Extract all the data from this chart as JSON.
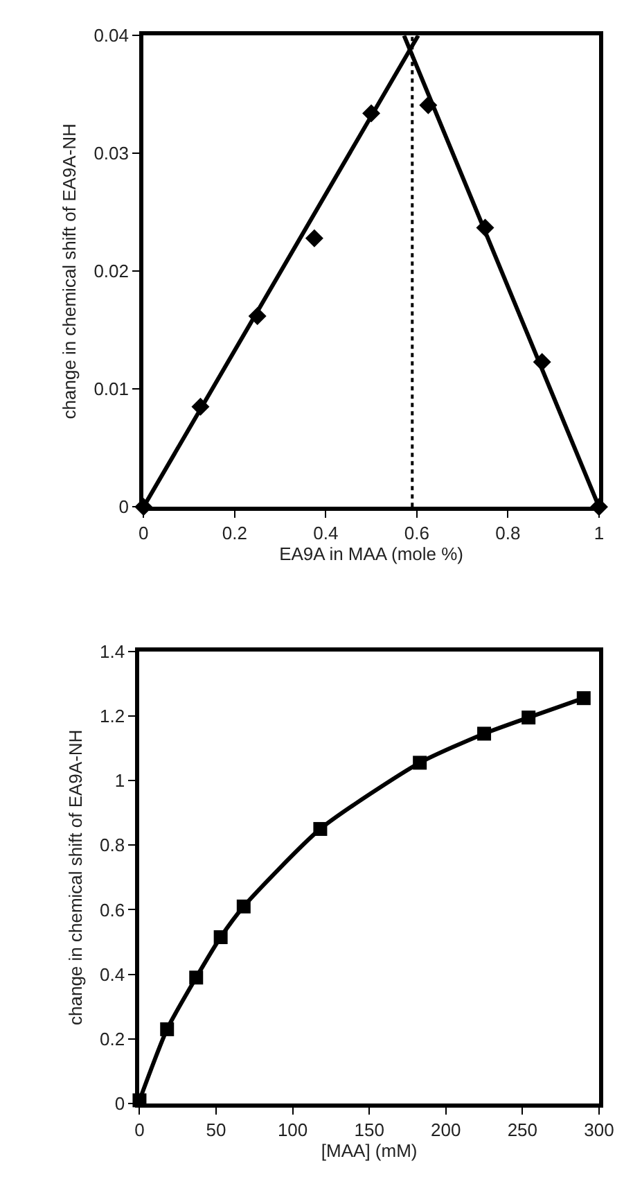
{
  "chart_data": [
    {
      "type": "scatter",
      "xlabel": "EA9A in MAA (mole %)",
      "ylabel": "change in chemical shift of EA9A-NH",
      "marker": "diamond",
      "grid": false,
      "legend": false,
      "x": [
        0,
        0.125,
        0.25,
        0.375,
        0.5,
        0.625,
        0.75,
        0.875,
        1
      ],
      "series": [
        {
          "color": "#000000",
          "values": [
            0,
            0.0085,
            0.0162,
            0.0228,
            0.0334,
            0.0341,
            0.0237,
            0.0123,
            0
          ]
        },
        {
          "type": "line",
          "marker": "none",
          "color": "#000000",
          "x": [
            0,
            0.603
          ],
          "values": [
            0,
            0.04
          ]
        },
        {
          "type": "line",
          "marker": "none",
          "color": "#000000",
          "x": [
            1,
            0.572
          ],
          "values": [
            0,
            0.04
          ]
        }
      ],
      "ref_lines": [
        {
          "axis": "x",
          "value": 0.59,
          "color": "#000000",
          "line_style": "dotted"
        }
      ],
      "xlim": [
        0,
        1
      ],
      "xticks": [
        0,
        0.2,
        0.4,
        0.6,
        0.8,
        1
      ],
      "ylim": [
        0,
        0.04
      ],
      "yticks": [
        0,
        0.01,
        0.02,
        0.03,
        0.04
      ]
    },
    {
      "type": "line",
      "xlabel": "[MAA] (mM)",
      "ylabel": "change in chemical shift of EA9A-NH",
      "marker": "square",
      "line_style": "solid",
      "grid": false,
      "legend": false,
      "x": [
        0,
        18,
        37,
        53,
        68,
        118,
        183,
        225,
        254,
        290
      ],
      "series": [
        {
          "color": "#000000",
          "values": [
            0.01,
            0.23,
            0.39,
            0.515,
            0.61,
            0.85,
            1.055,
            1.145,
            1.195,
            1.255
          ]
        }
      ],
      "xlim": [
        0,
        300
      ],
      "xticks": [
        0,
        50,
        100,
        150,
        200,
        250,
        300
      ],
      "ylim": [
        0,
        1.4
      ],
      "yticks": [
        0,
        0.2,
        0.4,
        0.6,
        0.8,
        1,
        1.2,
        1.4
      ]
    }
  ]
}
